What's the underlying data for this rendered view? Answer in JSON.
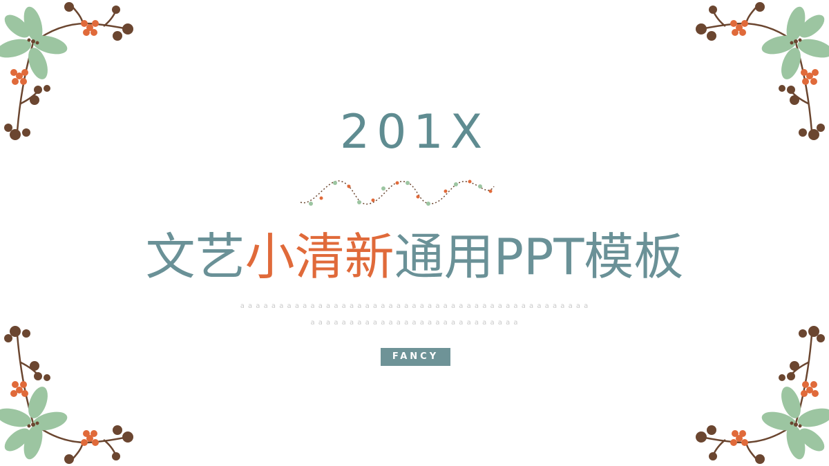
{
  "slide": {
    "year": "201X",
    "title_part1": "文艺",
    "title_accent": "小清新",
    "title_part2": "通用PPT模板",
    "subtitle_line1": "a a a a a a a a a a a a a a a a a a a a a a a a a a a a a a a a a a a a a a a a a a a a a",
    "subtitle_line2": "a a a a a a a a a a a a a a a a a a a a a a a a a a a",
    "badge": "FANCY"
  },
  "colors": {
    "primary": "#5f8c91",
    "accent": "#e06a3a",
    "leaf": "#9cc5a1",
    "berry": "#6b4630",
    "badge_bg": "#6e9397"
  }
}
